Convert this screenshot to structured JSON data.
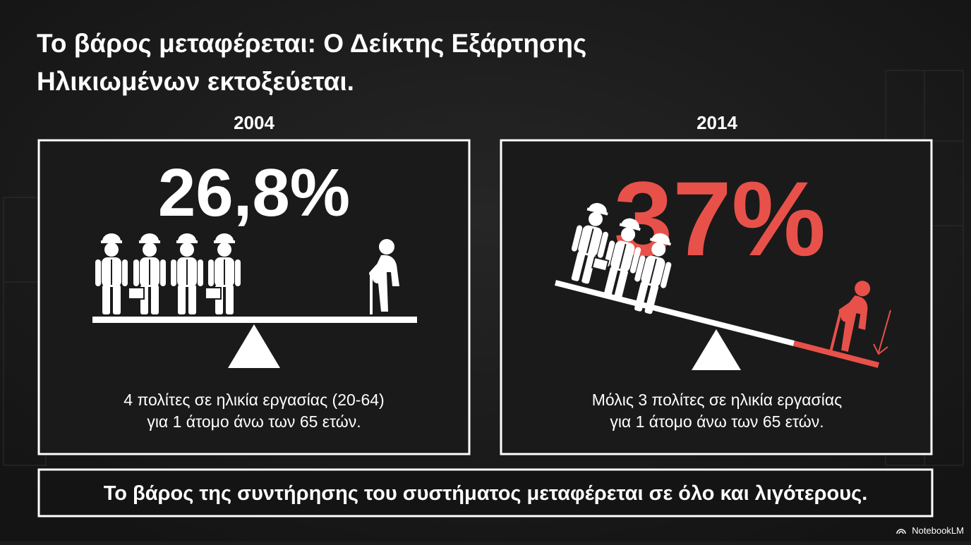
{
  "header": {
    "title_lines": [
      "Το βάρος μεταφέρεται: Ο Δείκτης Εξάρτησης",
      "Ηλικιωμένων εκτοξεύεται."
    ]
  },
  "panels": [
    {
      "year": "2004",
      "value": "26,8%",
      "caption_lines": [
        "4 πολίτες σε ηλικία εργασίας (20-64)",
        "για 1 άτομο άνω των 65 ετών."
      ]
    },
    {
      "year": "2014",
      "value": "37%",
      "caption_lines": [
        "Μόλις 3 πολίτες σε ηλικία εργασίας",
        "για 1 άτομο άνω των 65 ετών."
      ]
    }
  ],
  "footer": {
    "text": "Το βάρος της συντήρησης του συστήματος μεταφέρεται σε όλο και λιγότερους."
  },
  "brand": "NotebookLM"
}
